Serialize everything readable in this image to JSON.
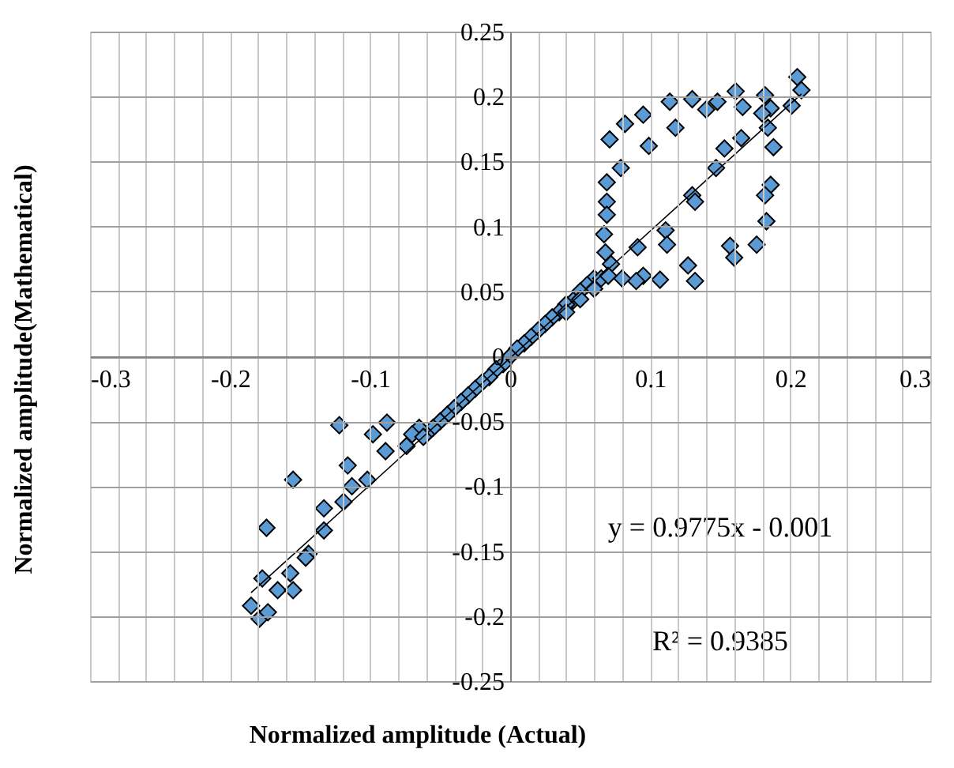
{
  "chart_data": {
    "type": "scatter",
    "xlabel": "Normalized amplitude (Actual)",
    "ylabel": "Normalized amplitude(Mathematical)",
    "xlim": [
      -0.3,
      0.3
    ],
    "ylim": [
      -0.25,
      0.25
    ],
    "xticks": [
      -0.3,
      {
        "value": -0.28,
        "label": null
      },
      {
        "value": -0.26,
        "label": null
      },
      {
        "value": -0.24,
        "label": null
      },
      {
        "value": -0.22,
        "label": null
      },
      -0.2,
      {
        "value": -0.18,
        "label": null
      },
      {
        "value": -0.16,
        "label": null
      },
      {
        "value": -0.14,
        "label": null
      },
      {
        "value": -0.12,
        "label": null
      },
      -0.1,
      {
        "value": -0.08,
        "label": null
      },
      {
        "value": -0.06,
        "label": null
      },
      {
        "value": -0.04,
        "label": null
      },
      {
        "value": -0.02,
        "label": null
      },
      0,
      {
        "value": 0.02,
        "label": null
      },
      {
        "value": 0.04,
        "label": null
      },
      {
        "value": 0.06,
        "label": null
      },
      {
        "value": 0.08,
        "label": null
      },
      0.1,
      {
        "value": 0.12,
        "label": null
      },
      {
        "value": 0.14,
        "label": null
      },
      {
        "value": 0.16,
        "label": null
      },
      {
        "value": 0.18,
        "label": null
      },
      0.2,
      {
        "value": 0.22,
        "label": null
      },
      {
        "value": 0.24,
        "label": null
      },
      {
        "value": 0.26,
        "label": null
      },
      {
        "value": 0.28,
        "label": null
      },
      0.3
    ],
    "yticks": [
      -0.25,
      -0.2,
      -0.15,
      -0.1,
      -0.05,
      0,
      0.05,
      0.1,
      0.15,
      0.2,
      0.25
    ],
    "grid": true,
    "legend": false,
    "annotations": [
      "y = 0.9775x - 0.001",
      "R² = 0.9385"
    ],
    "series": [
      {
        "type": "scatter",
        "color": "#5b9bd5",
        "marker": "diamond",
        "x": [
          0.205,
          0.208,
          0.201,
          0.182,
          0.186,
          0.18,
          0.161,
          0.166,
          0.148,
          0.14,
          0.13,
          0.114,
          0.118,
          0.095,
          0.099,
          0.082,
          0.071,
          0.079,
          0.069,
          0.069,
          0.069,
          0.067,
          0.068,
          0.072,
          0.091,
          0.111,
          0.112,
          0.13,
          0.132,
          0.147,
          0.153,
          0.165,
          0.184,
          0.188,
          0.186,
          0.182,
          0.183,
          0.176,
          0.157,
          0.16,
          0.127,
          0.132,
          0.107,
          0.095,
          0.09,
          0.08,
          0.06,
          0.055,
          0.05,
          0.045,
          0.04,
          0.035,
          0.03,
          0.025,
          0.02,
          0.015,
          0.01,
          0.005,
          0,
          -0.005,
          -0.01,
          -0.015,
          -0.02,
          -0.025,
          -0.03,
          -0.035,
          -0.04,
          -0.045,
          -0.05,
          -0.055,
          -0.06,
          0.065,
          0.07,
          0.06,
          0.04,
          0.05,
          -0.065,
          -0.07,
          -0.122,
          -0.088,
          -0.098,
          -0.089,
          -0.074,
          -0.062,
          -0.116,
          -0.102,
          -0.113,
          -0.119,
          -0.155,
          -0.133,
          -0.133,
          -0.144,
          -0.146,
          -0.174,
          -0.157,
          -0.177,
          -0.166,
          -0.155,
          -0.185,
          -0.179,
          -0.173
        ],
        "values": [
          0.215,
          0.205,
          0.193,
          0.201,
          0.191,
          0.187,
          0.204,
          0.192,
          0.196,
          0.19,
          0.198,
          0.196,
          0.176,
          0.186,
          0.162,
          0.179,
          0.167,
          0.145,
          0.134,
          0.119,
          0.109,
          0.094,
          0.08,
          0.071,
          0.084,
          0.097,
          0.086,
          0.124,
          0.119,
          0.145,
          0.16,
          0.168,
          0.176,
          0.161,
          0.132,
          0.124,
          0.104,
          0.086,
          0.085,
          0.076,
          0.07,
          0.058,
          0.059,
          0.062,
          0.058,
          0.06,
          0.06,
          0.055,
          0.05,
          0.043,
          0.04,
          0.034,
          0.03,
          0.025,
          0.02,
          0.015,
          0.01,
          0.006,
          0,
          -0.006,
          -0.01,
          -0.016,
          -0.02,
          -0.025,
          -0.03,
          -0.035,
          -0.04,
          -0.045,
          -0.05,
          -0.055,
          -0.06,
          0.06,
          0.062,
          0.052,
          0.034,
          0.044,
          -0.055,
          -0.06,
          -0.053,
          -0.051,
          -0.06,
          -0.073,
          -0.069,
          -0.062,
          -0.084,
          -0.095,
          -0.1,
          -0.112,
          -0.095,
          -0.117,
          -0.134,
          -0.152,
          -0.155,
          -0.132,
          -0.167,
          -0.171,
          -0.18,
          -0.18,
          -0.192,
          -0.202,
          -0.197
        ]
      },
      {
        "type": "line",
        "color": "#000000",
        "x": [
          -0.185,
          0.208
        ],
        "values": [
          -0.182,
          0.202
        ]
      }
    ]
  }
}
